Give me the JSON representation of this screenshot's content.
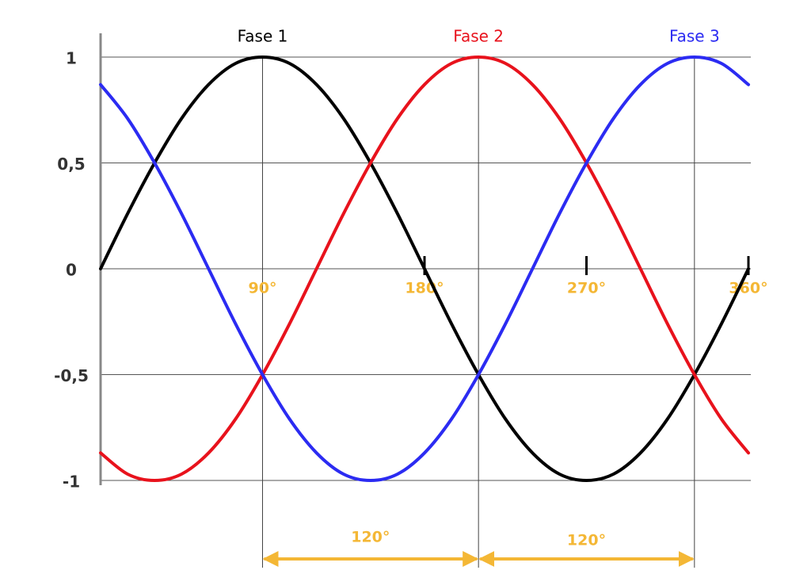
{
  "chart_data": {
    "type": "line",
    "x": [
      0,
      15,
      30,
      45,
      60,
      75,
      90,
      105,
      120,
      135,
      150,
      165,
      180,
      195,
      210,
      225,
      240,
      255,
      270,
      285,
      300,
      315,
      330,
      345,
      360
    ],
    "series": [
      {
        "name": "Fase 1",
        "color": "#000000",
        "values": [
          0,
          0.26,
          0.5,
          0.71,
          0.87,
          0.97,
          1,
          0.97,
          0.87,
          0.71,
          0.5,
          0.26,
          0,
          -0.26,
          -0.5,
          -0.71,
          -0.87,
          -0.97,
          -1,
          -0.97,
          -0.87,
          -0.71,
          -0.5,
          -0.26,
          0
        ]
      },
      {
        "name": "Fase 2",
        "color": "#e8121c",
        "values": [
          -0.87,
          -0.97,
          -1,
          -0.97,
          -0.87,
          -0.71,
          -0.5,
          -0.26,
          0,
          0.26,
          0.5,
          0.71,
          0.87,
          0.97,
          1,
          0.97,
          0.87,
          0.71,
          0.5,
          0.26,
          0,
          -0.26,
          -0.5,
          -0.71,
          -0.87
        ]
      },
      {
        "name": "Fase 3",
        "color": "#2b2bf2",
        "values": [
          0.87,
          0.71,
          0.5,
          0.26,
          0,
          -0.26,
          -0.5,
          -0.71,
          -0.87,
          -0.97,
          -1,
          -0.97,
          -0.87,
          -0.71,
          -0.5,
          -0.26,
          0,
          0.26,
          0.5,
          0.71,
          0.87,
          0.97,
          1,
          0.97,
          0.87
        ]
      }
    ],
    "xlim": [
      0,
      360
    ],
    "ylim": [
      -1,
      1
    ],
    "xticks": [
      {
        "value": 90,
        "label": "90°"
      },
      {
        "value": 180,
        "label": "180°"
      },
      {
        "value": 270,
        "label": "270°"
      },
      {
        "value": 360,
        "label": "360°"
      }
    ],
    "yticks": [
      1,
      {
        "value": 0.5,
        "label": "0,5"
      },
      0,
      {
        "value": -0.5,
        "label": "-0,5"
      },
      -1
    ],
    "grid": true,
    "vlines": [
      90,
      210,
      330
    ],
    "annotations": [
      {
        "from": 90,
        "to": 210,
        "label": "120°"
      },
      {
        "from": 210,
        "to": 330,
        "label": "120°"
      }
    ]
  }
}
